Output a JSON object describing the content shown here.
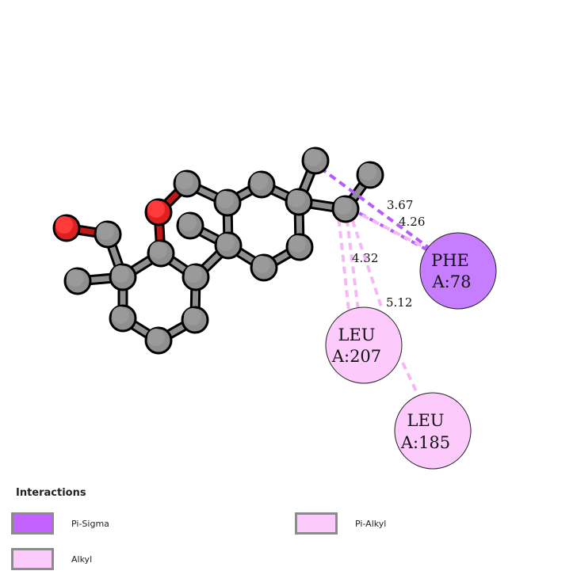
{
  "residues": [
    {
      "name": "PHE",
      "id": "A:78",
      "color": "#c77dff"
    },
    {
      "name": "LEU",
      "id": "A:207",
      "color": "#fccbfc"
    },
    {
      "name": "LEU",
      "id": "A:185",
      "color": "#fccbfc"
    }
  ],
  "distances": [
    "3.67",
    "4.26",
    "4.32",
    "5.12"
  ],
  "legend": {
    "title": "Interactions",
    "items": [
      {
        "label": "Pi-Sigma",
        "color": "#c462ff"
      },
      {
        "label": "Pi-Alkyl",
        "color": "#fccbfc"
      },
      {
        "label": "Alkyl",
        "color": "#fccbfc"
      }
    ]
  },
  "colors": {
    "carbon": "#8f8f8f",
    "oxygen": "#e02020",
    "pi_sigma_line": "#b45cff",
    "alkyl_line": "#f5b8f5"
  }
}
